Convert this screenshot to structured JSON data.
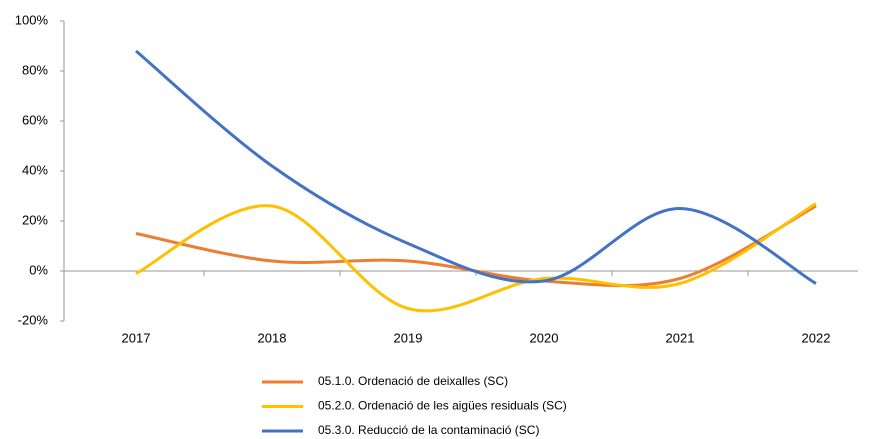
{
  "chart_data": {
    "type": "line",
    "categories": [
      "2017",
      "2018",
      "2019",
      "2020",
      "2021",
      "2022"
    ],
    "series": [
      {
        "name": "05.1.0. Ordenació de deixalles (SC)",
        "color": "#ed7d31",
        "values": [
          15,
          4,
          4,
          -4,
          -3,
          26
        ]
      },
      {
        "name": "05.2.0. Ordenació de les aigües residuals (SC)",
        "color": "#ffc000",
        "values": [
          -1,
          26,
          -15,
          -3,
          -5,
          27
        ]
      },
      {
        "name": "05.3.0. Reducció de la contaminació (SC)",
        "color": "#4472c4",
        "values": [
          88,
          42,
          11,
          -4,
          25,
          -5
        ]
      }
    ],
    "ylim": [
      -20,
      100
    ],
    "yticks": [
      {
        "value": -20,
        "label": "-20%"
      },
      {
        "value": 0,
        "label": "0%"
      },
      {
        "value": 20,
        "label": "20%"
      },
      {
        "value": 40,
        "label": "40%"
      },
      {
        "value": 60,
        "label": "60%"
      },
      {
        "value": 80,
        "label": "80%"
      },
      {
        "value": 100,
        "label": "100%"
      }
    ],
    "legend": "bottom",
    "smooth": true
  }
}
